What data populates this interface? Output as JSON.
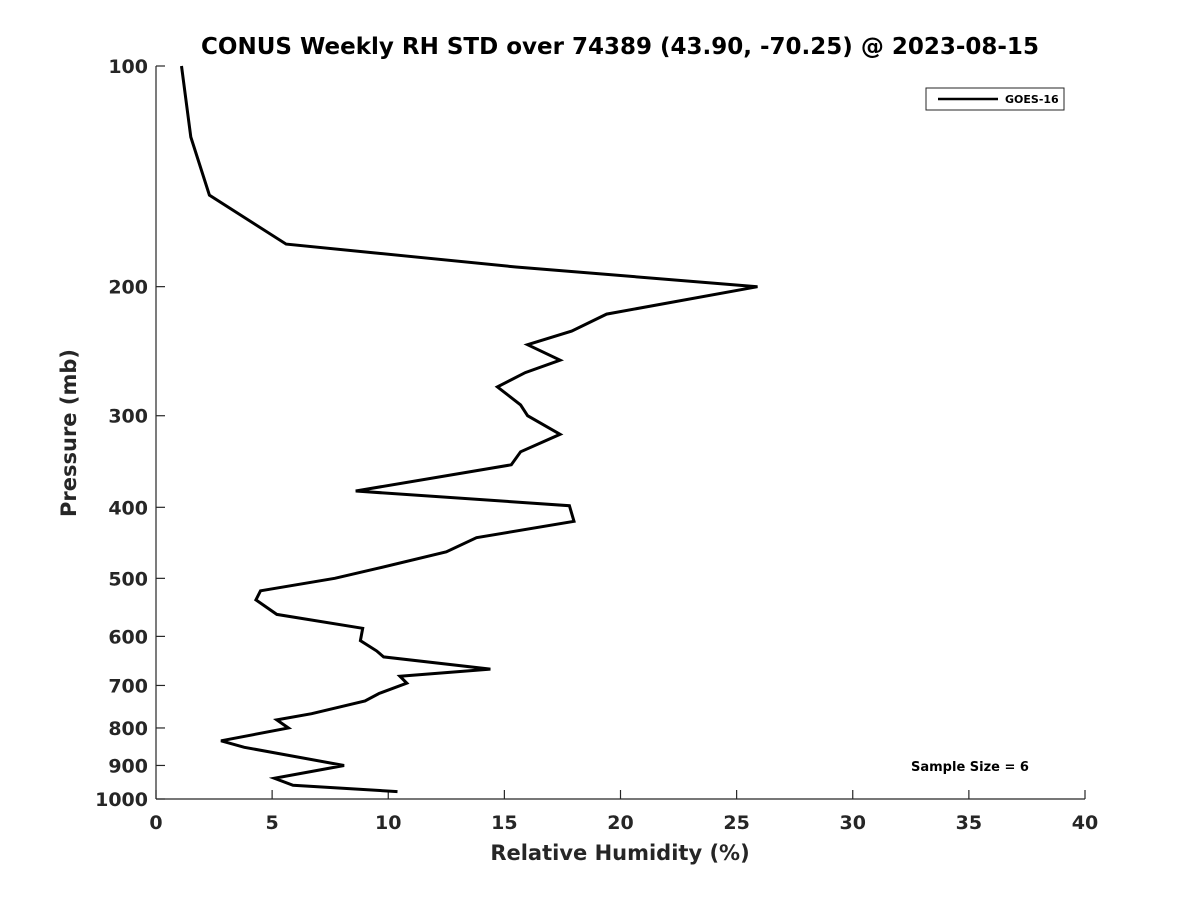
{
  "chart_data": {
    "type": "line",
    "title": "CONUS Weekly RH STD over 74389 (43.90, -70.25) @ 2023-08-15",
    "xlabel": "Relative Humidity (%)",
    "ylabel": "Pressure (mb)",
    "xlim": [
      0,
      40
    ],
    "ylim": [
      100,
      1000
    ],
    "y_scale": "log",
    "y_reversed": true,
    "x_ticks": [
      0,
      5,
      10,
      15,
      20,
      25,
      30,
      35,
      40
    ],
    "y_ticks": [
      100,
      200,
      300,
      400,
      500,
      600,
      700,
      800,
      900,
      1000
    ],
    "grid": false,
    "legend": {
      "entries": [
        "GOES-16"
      ],
      "placement": "top-right"
    },
    "annotation": "Sample Size = 6",
    "series": [
      {
        "name": "GOES-16",
        "color": "#000000",
        "points": [
          [
            1.1,
            100
          ],
          [
            1.5,
            125
          ],
          [
            2.3,
            150
          ],
          [
            5.6,
            175
          ],
          [
            15.5,
            188
          ],
          [
            25.9,
            200
          ],
          [
            19.4,
            218
          ],
          [
            17.9,
            230
          ],
          [
            16.0,
            240
          ],
          [
            17.4,
            252
          ],
          [
            15.9,
            262
          ],
          [
            14.7,
            274
          ],
          [
            15.7,
            290
          ],
          [
            16.0,
            300
          ],
          [
            17.4,
            318
          ],
          [
            15.7,
            336
          ],
          [
            15.3,
            350
          ],
          [
            8.6,
            380
          ],
          [
            17.8,
            398
          ],
          [
            18.0,
            418
          ],
          [
            13.8,
            440
          ],
          [
            12.5,
            460
          ],
          [
            9.5,
            485
          ],
          [
            7.7,
            500
          ],
          [
            4.5,
            520
          ],
          [
            4.3,
            535
          ],
          [
            5.2,
            560
          ],
          [
            8.9,
            585
          ],
          [
            8.8,
            608
          ],
          [
            9.5,
            628
          ],
          [
            9.8,
            640
          ],
          [
            14.4,
            665
          ],
          [
            10.5,
            680
          ],
          [
            10.8,
            695
          ],
          [
            9.6,
            718
          ],
          [
            9.0,
            735
          ],
          [
            6.7,
            765
          ],
          [
            5.2,
            780
          ],
          [
            5.7,
            800
          ],
          [
            2.8,
            833
          ],
          [
            3.8,
            850
          ],
          [
            8.1,
            900
          ],
          [
            5.1,
            937
          ],
          [
            5.9,
            958
          ],
          [
            10.4,
            977
          ]
        ]
      }
    ]
  }
}
